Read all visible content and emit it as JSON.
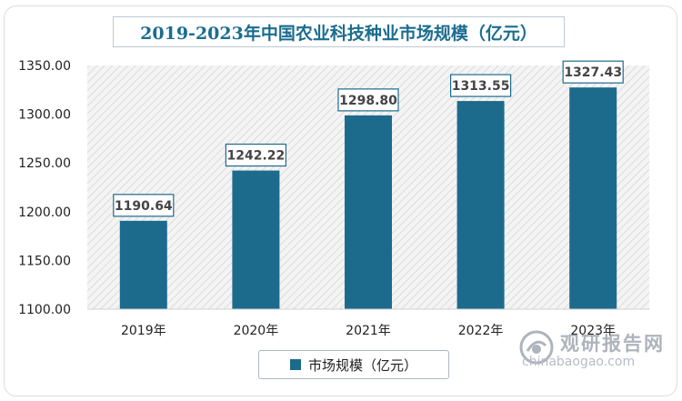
{
  "chart_data": {
    "type": "bar",
    "title": "2019-2023年中国农业科技种业市场规模（亿元）",
    "categories": [
      "2019年",
      "2020年",
      "2021年",
      "2022年",
      "2023年"
    ],
    "series": [
      {
        "name": "市场规模（亿元）",
        "values": [
          1190.64,
          1242.22,
          1298.8,
          1313.55,
          1327.43
        ]
      }
    ],
    "data_labels": [
      "1190.64",
      "1242.22",
      "1298.80",
      "1313.55",
      "1327.43"
    ],
    "y_ticks": [
      "1100.00",
      "1150.00",
      "1200.00",
      "1250.00",
      "1300.00",
      "1350.00"
    ],
    "ylim": [
      1100,
      1350
    ],
    "legend_position": "bottom",
    "grid": false,
    "colors": {
      "bar": "#1d6b8c",
      "title": "#1b6d8f",
      "label_border": "#1d6b8c"
    }
  },
  "watermark": {
    "name": "观研报告网",
    "url": "chinabaogao.com",
    "icon": "chinabaogao-logo-icon"
  }
}
